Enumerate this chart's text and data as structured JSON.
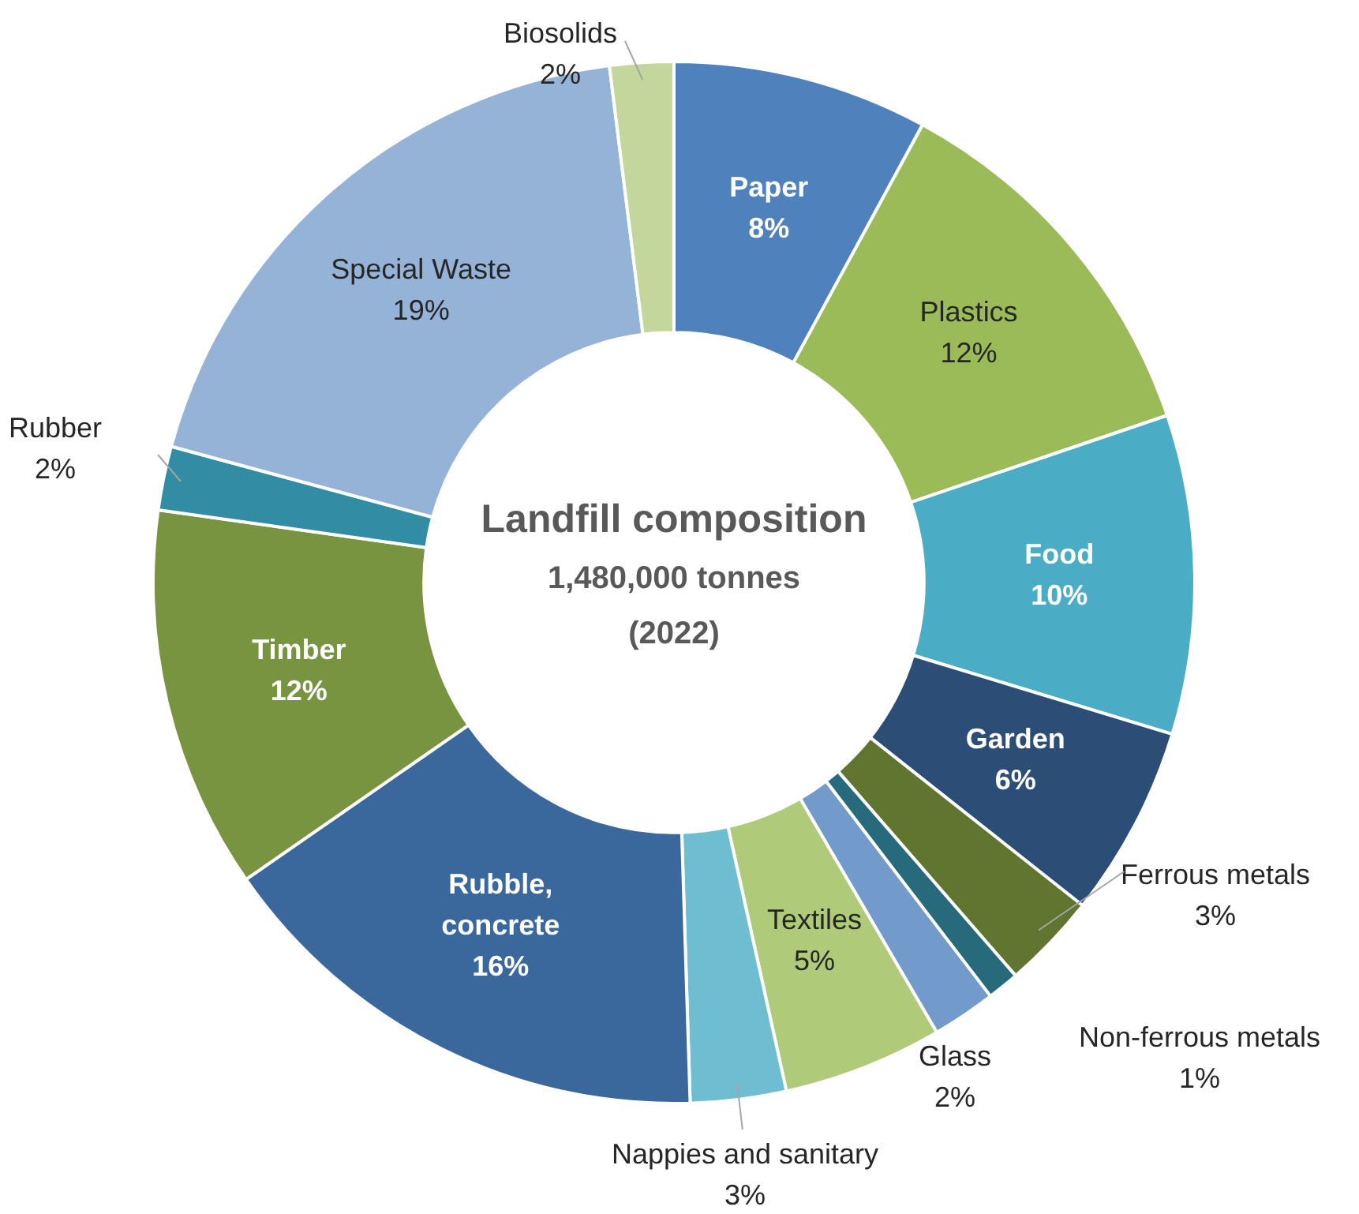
{
  "chart_data": {
    "type": "donut",
    "title": "Landfill composition",
    "subtitle": "1,480,000 tonnes",
    "annotations": [
      "(2022)"
    ],
    "categories": [
      "Paper",
      "Plastics",
      "Food",
      "Garden",
      "Ferrous metals",
      "Non-ferrous metals",
      "Glass",
      "Textiles",
      "Nappies and sanitary",
      "Rubble, concrete",
      "Timber",
      "Rubber",
      "Special Waste",
      "Biosolids"
    ],
    "values": [
      8,
      12,
      10,
      6,
      3,
      1,
      2,
      5,
      3,
      16,
      12,
      2,
      19,
      2
    ],
    "value_labels": [
      "8%",
      "12%",
      "10%",
      "6%",
      "3%",
      "1%",
      "2%",
      "5%",
      "3%",
      "16%",
      "12%",
      "2%",
      "19%",
      "2%"
    ],
    "colors": [
      "#4f81bd",
      "#9bbb59",
      "#4bacc6",
      "#2c4d75",
      "#5f7530",
      "#276a7c",
      "#729aca",
      "#afcb7a",
      "#6fbdd1",
      "#3a679c",
      "#789440",
      "#318ca4",
      "#95b3d7",
      "#c3d69b"
    ]
  }
}
